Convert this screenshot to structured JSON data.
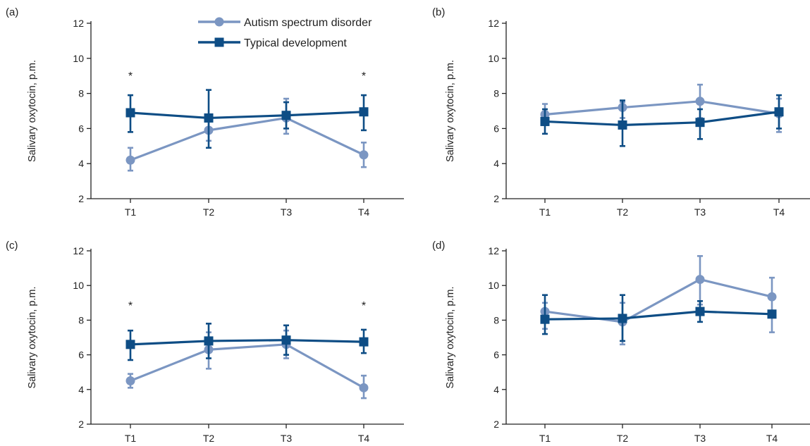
{
  "colors": {
    "asd": "#7b96c2",
    "td": "#0e4d85",
    "axis": "#222222"
  },
  "legend": [
    {
      "key": "asd",
      "label": "Autism spectrum disorder",
      "marker": "circle"
    },
    {
      "key": "td",
      "label": "Typical development",
      "marker": "square"
    }
  ],
  "chart_data": [
    {
      "type": "line",
      "panel_label": "(a)",
      "categories": [
        "T1",
        "T2",
        "T3",
        "T4"
      ],
      "ylabel": "Salivary oxytocin, p.m.",
      "ylim": [
        2,
        12
      ],
      "yticks": [
        2,
        4,
        6,
        8,
        10,
        12
      ],
      "legend_location": "top",
      "significance": [
        "*",
        "",
        "",
        "*"
      ],
      "series": [
        {
          "key": "asd",
          "name": "Autism spectrum disorder",
          "values": [
            4.2,
            5.9,
            6.6,
            4.5
          ],
          "err_low": [
            3.6,
            5.3,
            5.7,
            3.8
          ],
          "err_high": [
            4.9,
            6.5,
            7.7,
            5.2
          ]
        },
        {
          "key": "td",
          "name": "Typical development",
          "values": [
            6.9,
            6.6,
            6.75,
            6.95
          ],
          "err_low": [
            5.8,
            4.9,
            6.0,
            5.9
          ],
          "err_high": [
            7.9,
            8.2,
            7.5,
            7.9
          ]
        }
      ]
    },
    {
      "type": "line",
      "panel_label": "(b)",
      "categories": [
        "T1",
        "T2",
        "T3",
        "T4"
      ],
      "ylabel": "Salivary oxytocin, p.m.",
      "ylim": [
        2,
        12
      ],
      "yticks": [
        2,
        4,
        6,
        8,
        10,
        12
      ],
      "significance": [
        "",
        "",
        "",
        ""
      ],
      "series": [
        {
          "key": "asd",
          "name": "Autism spectrum disorder",
          "values": [
            6.8,
            7.2,
            7.55,
            6.85
          ],
          "err_low": [
            6.2,
            6.6,
            6.6,
            5.8
          ],
          "err_high": [
            7.4,
            7.5,
            8.5,
            7.7
          ]
        },
        {
          "key": "td",
          "name": "Typical development",
          "values": [
            6.4,
            6.2,
            6.35,
            6.95
          ],
          "err_low": [
            5.7,
            5.0,
            5.4,
            6.0
          ],
          "err_high": [
            7.1,
            7.6,
            7.1,
            7.9
          ]
        }
      ]
    },
    {
      "type": "line",
      "panel_label": "(c)",
      "categories": [
        "T1",
        "T2",
        "T3",
        "T4"
      ],
      "ylabel": "Salivary oxytocin, p.m.",
      "ylim": [
        2,
        12
      ],
      "yticks": [
        2,
        4,
        6,
        8,
        10,
        12
      ],
      "significance": [
        "*",
        "",
        "",
        "*"
      ],
      "series": [
        {
          "key": "asd",
          "name": "Autism spectrum disorder",
          "values": [
            4.5,
            6.3,
            6.6,
            4.1
          ],
          "err_low": [
            4.1,
            5.2,
            5.8,
            3.5
          ],
          "err_high": [
            4.9,
            7.3,
            7.4,
            4.8
          ]
        },
        {
          "key": "td",
          "name": "Typical development",
          "values": [
            6.6,
            6.8,
            6.85,
            6.75
          ],
          "err_low": [
            5.7,
            5.8,
            6.0,
            6.1
          ],
          "err_high": [
            7.4,
            7.8,
            7.7,
            7.45
          ]
        }
      ]
    },
    {
      "type": "line",
      "panel_label": "(d)",
      "categories": [
        "T1",
        "T2",
        "T3",
        "T4"
      ],
      "ylabel": "Salivary oxytocin, p.m.",
      "ylim": [
        2,
        12
      ],
      "yticks": [
        2,
        4,
        6,
        8,
        10,
        12
      ],
      "significance": [
        "",
        "",
        "",
        ""
      ],
      "series": [
        {
          "key": "asd",
          "name": "Autism spectrum disorder",
          "values": [
            8.5,
            7.9,
            10.35,
            9.35
          ],
          "err_low": [
            7.5,
            6.6,
            8.9,
            7.3
          ],
          "err_high": [
            9.0,
            9.0,
            11.7,
            10.45
          ]
        },
        {
          "key": "td",
          "name": "Typical development",
          "values": [
            8.05,
            8.1,
            8.5,
            8.35
          ],
          "err_low": [
            7.2,
            6.8,
            7.9,
            8.35
          ],
          "err_high": [
            9.45,
            9.45,
            9.1,
            8.35
          ]
        }
      ]
    }
  ]
}
